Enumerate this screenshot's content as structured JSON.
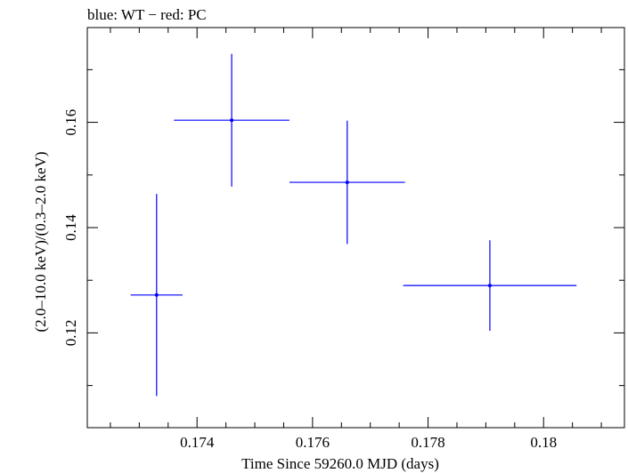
{
  "chart_data": {
    "type": "scatter",
    "title": "blue: WT − red: PC",
    "xlabel": "Time Since 59260.0 MJD (days)",
    "ylabel": "(2.0–10.0 keV)/(0.3–2.0 keV)",
    "xlim": [
      0.1721,
      0.1814
    ],
    "ylim": [
      0.102,
      0.178
    ],
    "x_ticks": [
      {
        "value": 0.174,
        "label": "0.174"
      },
      {
        "value": 0.176,
        "label": "0.176"
      },
      {
        "value": 0.178,
        "label": "0.178"
      },
      {
        "value": 0.18,
        "label": "0.18"
      }
    ],
    "y_ticks": [
      {
        "value": 0.12,
        "label": "0.12"
      },
      {
        "value": 0.14,
        "label": "0.14"
      },
      {
        "value": 0.16,
        "label": "0.16"
      }
    ],
    "series": [
      {
        "name": "WT",
        "color": "#0000ff",
        "points": [
          {
            "x": 0.1733,
            "xerr": 0.00045,
            "y": 0.1272,
            "yerr_low": 0.0192,
            "yerr_high": 0.0192
          },
          {
            "x": 0.1746,
            "xerr": 0.001,
            "y": 0.1604,
            "yerr_low": 0.0126,
            "yerr_high": 0.0126
          },
          {
            "x": 0.1766,
            "xerr": 0.001,
            "y": 0.1486,
            "yerr_low": 0.0117,
            "yerr_high": 0.0117
          },
          {
            "x": 0.17907,
            "xerr": 0.0015,
            "y": 0.129,
            "yerr_low": 0.0086,
            "yerr_high": 0.0086
          }
        ]
      }
    ],
    "grid": false,
    "legend": "none"
  }
}
